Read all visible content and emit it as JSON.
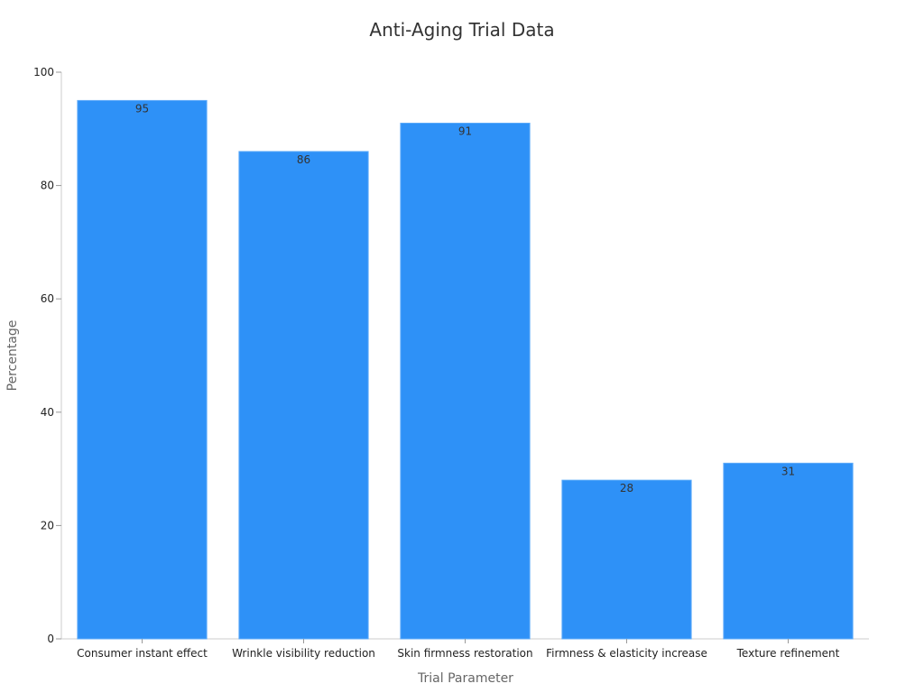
{
  "chart_data": {
    "type": "bar",
    "title": "Anti-Aging Trial Data",
    "xlabel": "Trial Parameter",
    "ylabel": "Percentage",
    "categories": [
      "Consumer instant effect",
      "Wrinkle visibility reduction",
      "Skin firmness restoration",
      "Firmness & elasticity increase",
      "Texture refinement"
    ],
    "values": [
      95,
      86,
      91,
      28,
      31
    ],
    "ylim": [
      0,
      100
    ],
    "yticks": [
      0,
      20,
      40,
      60,
      80,
      100
    ],
    "grid": false,
    "legend": "none",
    "bar_color": "#2e91f7",
    "data_labels": true
  }
}
